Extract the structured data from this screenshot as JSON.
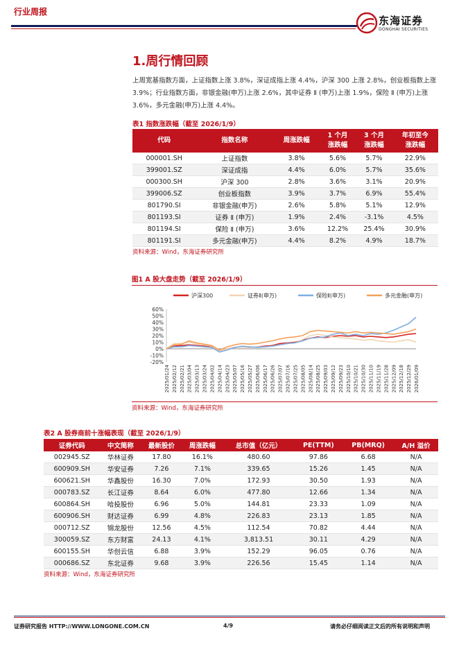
{
  "header": {
    "tag": "行业周报",
    "logo_cn": "东海证券",
    "logo_en": "DONGHAI SECURITIES"
  },
  "section": {
    "title": "1.周行情回顾",
    "paragraph": "上周宽基指数方面，上证指数上涨 3.8%，深证成指上涨 4.4%，沪深 300 上涨 2.8%，创业板指数上涨 3.9%；行业指数方面，非银金融(申万)上涨 2.6%，其中证券 Ⅱ (申万)上涨 1.9%，保险 Ⅱ (申万)上涨 3.6%，多元金融(申万)上涨 4.4%。"
  },
  "table1": {
    "caption": "表1  指数涨跌幅（截至 2026/1/9）",
    "headers": [
      "代码",
      "指数名称",
      "周涨跌幅",
      "1 个月\n涨跌幅",
      "3 个月\n涨跌幅",
      "年初至今\n涨跌幅"
    ],
    "rows": [
      [
        "000001.SH",
        "上证指数",
        "3.8%",
        "5.6%",
        "5.7%",
        "22.9%"
      ],
      [
        "399001.SZ",
        "深证成指",
        "4.4%",
        "6.0%",
        "5.7%",
        "35.6%"
      ],
      [
        "000300.SH",
        "沪深 300",
        "2.8%",
        "3.6%",
        "3.1%",
        "20.9%"
      ],
      [
        "399006.SZ",
        "创业板指数",
        "3.9%",
        "3.7%",
        "6.9%",
        "55.4%"
      ],
      [
        "801790.SI",
        "非银金融(申万)",
        "2.6%",
        "5.8%",
        "5.1%",
        "12.9%"
      ],
      [
        "801193.SI",
        "证券 Ⅱ (申万)",
        "1.9%",
        "2.4%",
        "-3.1%",
        "4.5%"
      ],
      [
        "801194.SI",
        "保险 Ⅱ (申万)",
        "3.6%",
        "12.2%",
        "25.4%",
        "30.9%"
      ],
      [
        "801191.SI",
        "多元金融(申万)",
        "4.4%",
        "8.2%",
        "4.9%",
        "18.7%"
      ]
    ],
    "source": "资料来源：Wind，东海证券研究所"
  },
  "figure1": {
    "caption": "图1  A 股大盘走势（截至 2026/1/9）",
    "source": "资料来源：Wind，东海证券研究所"
  },
  "chart_data": {
    "type": "line",
    "title": "",
    "xlabel": "",
    "ylabel": "",
    "ylim": [
      -20,
      60
    ],
    "yticks": [
      "60%",
      "50%",
      "40%",
      "30%",
      "20%",
      "10%",
      "0%",
      "-10%",
      "-20%"
    ],
    "x": [
      "2025/01/24",
      "2025/02/12",
      "2025/02/21",
      "2025/03/04",
      "2025/03/13",
      "2025/03/24",
      "2025/04/02",
      "2025/04/14",
      "2025/04/23",
      "2025/05/07",
      "2025/05/16",
      "2025/05/27",
      "2025/06/06",
      "2025/06/17",
      "2025/06/26",
      "2025/07/07",
      "2025/07/16",
      "2025/07/25",
      "2025/08/05",
      "2025/08/14",
      "2025/08/25",
      "2025/09/03",
      "2025/09/12",
      "2025/09/23",
      "2025/10/10",
      "2025/10/21",
      "2025/10/30",
      "2025/11/10",
      "2025/11/19",
      "2025/11/28",
      "2025/12/09",
      "2025/12/18",
      "2025/12/29",
      "2026/01/09"
    ],
    "legend_position": "top",
    "grid": false,
    "series": [
      {
        "name": "沪深300",
        "color": "#d7241f",
        "values": [
          0,
          4,
          5,
          6,
          5,
          4,
          3,
          -3,
          0,
          2,
          3,
          2,
          3,
          4,
          5,
          8,
          9,
          10,
          13,
          16,
          18,
          17,
          19,
          20,
          19,
          20,
          18,
          19,
          18,
          17,
          18,
          20,
          22,
          23
        ]
      },
      {
        "name": "证券Ⅱ(申万)",
        "color": "#f1d3b3",
        "values": [
          0,
          8,
          8,
          10,
          7,
          6,
          4,
          -3,
          0,
          2,
          3,
          2,
          3,
          3,
          4,
          6,
          8,
          9,
          14,
          20,
          22,
          20,
          18,
          17,
          16,
          15,
          13,
          14,
          12,
          11,
          10,
          12,
          14,
          10
        ]
      },
      {
        "name": "保险Ⅱ(申万)",
        "color": "#7eaee3",
        "values": [
          0,
          3,
          3,
          5,
          4,
          3,
          2,
          -5,
          -2,
          2,
          4,
          3,
          2,
          3,
          4,
          6,
          8,
          9,
          12,
          16,
          17,
          18,
          22,
          24,
          20,
          22,
          20,
          23,
          22,
          24,
          28,
          33,
          38,
          48
        ]
      },
      {
        "name": "多元金融(申万)",
        "color": "#f3a05a",
        "values": [
          0,
          6,
          7,
          12,
          9,
          7,
          5,
          -2,
          3,
          6,
          8,
          7,
          8,
          10,
          12,
          15,
          17,
          18,
          20,
          26,
          28,
          27,
          26,
          25,
          24,
          26,
          24,
          25,
          24,
          23,
          22,
          24,
          26,
          30
        ]
      }
    ]
  },
  "table2": {
    "caption": "表2  A 股券商前十涨幅表现（截至 2026/1/9）",
    "headers": [
      "证券代码",
      "中文简称",
      "最新股价",
      "周涨跌幅",
      "总市值（亿元）",
      "PE(TTM)",
      "PB(MRQ)",
      "A/H 溢价"
    ],
    "rows": [
      [
        "002945.SZ",
        "华林证券",
        "17.80",
        "16.1%",
        "480.60",
        "97.86",
        "6.68",
        "N/A"
      ],
      [
        "600909.SH",
        "华安证券",
        "7.26",
        "7.1%",
        "339.65",
        "15.26",
        "1.45",
        "N/A"
      ],
      [
        "600621.SH",
        "华鑫股份",
        "16.30",
        "7.0%",
        "172.93",
        "30.50",
        "1.93",
        "N/A"
      ],
      [
        "000783.SZ",
        "长江证券",
        "8.64",
        "6.0%",
        "477.80",
        "12.66",
        "1.34",
        "N/A"
      ],
      [
        "600864.SH",
        "哈投股份",
        "6.96",
        "5.0%",
        "144.81",
        "23.33",
        "1.09",
        "N/A"
      ],
      [
        "600906.SH",
        "财达证券",
        "6.99",
        "4.8%",
        "226.83",
        "23.13",
        "1.85",
        "N/A"
      ],
      [
        "000712.SZ",
        "锦龙股份",
        "12.56",
        "4.5%",
        "112.54",
        "70.82",
        "4.44",
        "N/A"
      ],
      [
        "300059.SZ",
        "东方财富",
        "24.13",
        "4.1%",
        "3,813.51",
        "30.11",
        "4.29",
        "N/A"
      ],
      [
        "600155.SH",
        "华创云信",
        "6.88",
        "3.9%",
        "152.29",
        "96.05",
        "0.76",
        "N/A"
      ],
      [
        "000686.SZ",
        "东北证券",
        "9.68",
        "3.9%",
        "226.56",
        "15.45",
        "1.14",
        "N/A"
      ]
    ],
    "source": "资料来源：Wind，东海证券研究所"
  },
  "footer": {
    "left": "证券研究报告  HTTP://WWW.LONGONE.COM.CN",
    "page": "4/9",
    "right": "请务必仔细阅读正文后的所有说明和声明"
  }
}
